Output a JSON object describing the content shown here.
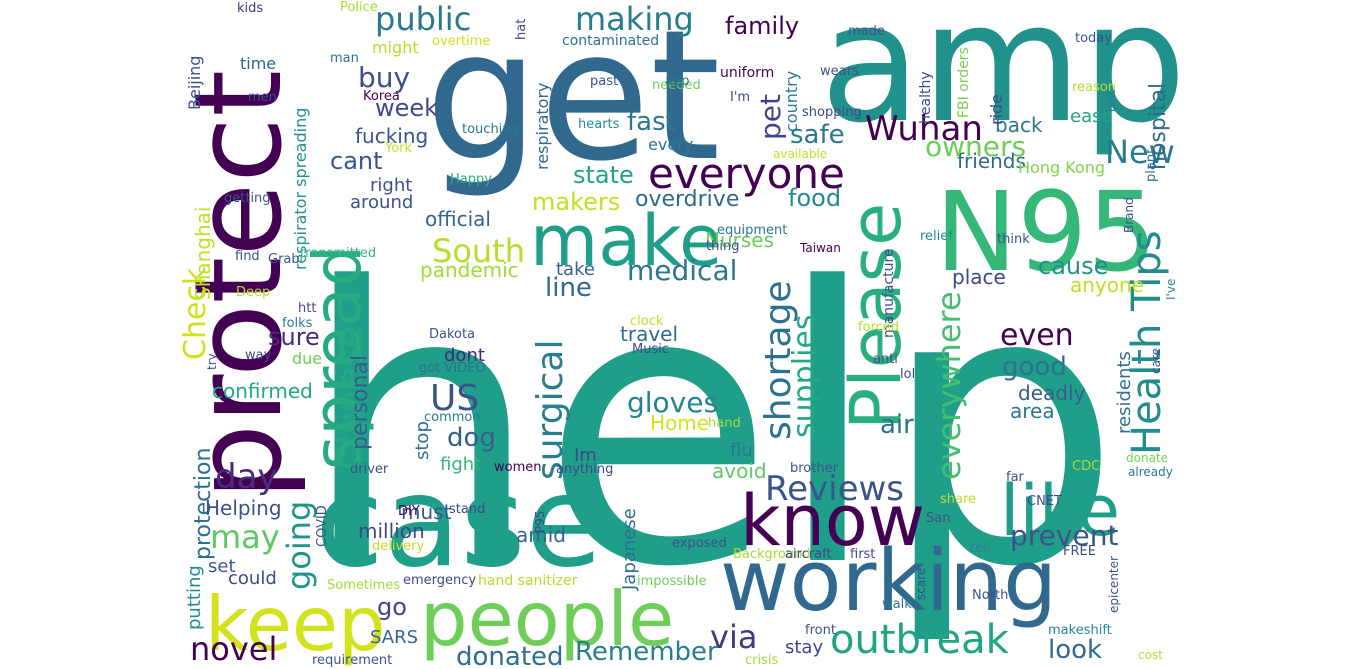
{
  "words": [
    {
      "text": "help",
      "color": "#1f9e89"
    },
    {
      "text": "get",
      "color": "#31688e"
    },
    {
      "text": "amp",
      "color": "#21918c"
    },
    {
      "text": "case",
      "color": "#1f9e89"
    },
    {
      "text": "protect",
      "color": "#440154"
    },
    {
      "text": "working",
      "color": "#31688e"
    },
    {
      "text": "N95",
      "color": "#35b779"
    },
    {
      "text": "keep",
      "color": "#d2e21b"
    },
    {
      "text": "people",
      "color": "#6ece58"
    },
    {
      "text": "spread",
      "color": "#25ab82"
    },
    {
      "text": "Please",
      "color": "#29af7f"
    },
    {
      "text": "know",
      "color": "#440154"
    },
    {
      "text": "make",
      "color": "#1f9e89"
    },
    {
      "text": "like",
      "color": "#1f9e89"
    },
    {
      "text": "everyone",
      "color": "#440154"
    },
    {
      "text": "outbreak",
      "color": "#20a386"
    },
    {
      "text": "Health Tips",
      "color": "#238a8d"
    },
    {
      "text": "Chinese",
      "color": "#22a884"
    },
    {
      "text": "shortage",
      "color": "#2c728e"
    },
    {
      "text": "surgical",
      "color": "#287d8e"
    },
    {
      "text": "supplies",
      "color": "#22a884"
    },
    {
      "text": "Reviews",
      "color": "#39568c"
    },
    {
      "text": "US",
      "color": "#3b528b"
    },
    {
      "text": "day",
      "color": "#472d7b"
    },
    {
      "text": "going",
      "color": "#1f948c"
    },
    {
      "text": "everywhere",
      "color": "#44bf70"
    },
    {
      "text": "Wuhan",
      "color": "#440154"
    },
    {
      "text": "making",
      "color": "#277f8e"
    },
    {
      "text": "public",
      "color": "#2a788e"
    },
    {
      "text": "novel",
      "color": "#440154"
    },
    {
      "text": "may",
      "color": "#5ec962"
    },
    {
      "text": "Check",
      "color": "#d0e11c"
    },
    {
      "text": "via",
      "color": "#443983"
    },
    {
      "text": "prevent",
      "color": "#3b528b"
    },
    {
      "text": "South",
      "color": "#b5de2b"
    },
    {
      "text": "New",
      "color": "#287c8e"
    },
    {
      "text": "gloves",
      "color": "#25848e"
    },
    {
      "text": "medical",
      "color": "#2a788e"
    },
    {
      "text": "owners",
      "color": "#6ece58"
    },
    {
      "text": "Remember",
      "color": "#287d8e"
    },
    {
      "text": "good",
      "color": "#2c728e"
    },
    {
      "text": "even",
      "color": "#440154"
    },
    {
      "text": "donated",
      "color": "#2e6f8e"
    },
    {
      "text": "look",
      "color": "#2f6c8e"
    },
    {
      "text": "cause",
      "color": "#21918c"
    },
    {
      "text": "food",
      "color": "#238a8d"
    },
    {
      "text": "buy",
      "color": "#3b528b"
    },
    {
      "text": "pet",
      "color": "#414487"
    },
    {
      "text": "fast",
      "color": "#2a788e"
    },
    {
      "text": "state",
      "color": "#20a386"
    },
    {
      "text": "dog",
      "color": "#35608d"
    },
    {
      "text": "air",
      "color": "#2d708e"
    },
    {
      "text": "cant",
      "color": "#39568c"
    },
    {
      "text": "line",
      "color": "#306a8e"
    },
    {
      "text": "safe",
      "color": "#2a788e"
    },
    {
      "text": "week",
      "color": "#3e4a89"
    },
    {
      "text": "go",
      "color": "#414487"
    },
    {
      "text": "sure",
      "color": "#472c7a"
    },
    {
      "text": "family",
      "color": "#440154"
    },
    {
      "text": "hospital",
      "color": "#2f6c8e"
    },
    {
      "text": "personal",
      "color": "#365c8d"
    },
    {
      "text": "protection",
      "color": "#2d708e"
    },
    {
      "text": "pandemic",
      "color": "#a2da37"
    },
    {
      "text": "overdrive",
      "color": "#31688e"
    },
    {
      "text": "official",
      "color": "#32658e"
    },
    {
      "text": "makers",
      "color": "#c2df23"
    },
    {
      "text": "fucking",
      "color": "#3a548c"
    },
    {
      "text": "deadly",
      "color": "#35608d"
    },
    {
      "text": "area",
      "color": "#2a788e"
    },
    {
      "text": "Helping",
      "color": "#3b528b"
    },
    {
      "text": "Shanghai",
      "color": "#c0df25"
    },
    {
      "text": "travel",
      "color": "#306a8e"
    },
    {
      "text": "place",
      "color": "#3e4989"
    },
    {
      "text": "anyone",
      "color": "#c2df23"
    },
    {
      "text": "back",
      "color": "#2a788e"
    },
    {
      "text": "Japanese",
      "color": "#2d708e"
    },
    {
      "text": "confirmed",
      "color": "#22a884"
    },
    {
      "text": "Nurses",
      "color": "#6ccd5a"
    },
    {
      "text": "must",
      "color": "#39568c"
    },
    {
      "text": "million",
      "color": "#3e4989"
    },
    {
      "text": "could",
      "color": "#3e4989"
    },
    {
      "text": "set",
      "color": "#365c8d"
    },
    {
      "text": "putting",
      "color": "#238a8d"
    },
    {
      "text": "stay",
      "color": "#404688"
    },
    {
      "text": "fight",
      "color": "#35b779"
    },
    {
      "text": "Im",
      "color": "#3e4989"
    },
    {
      "text": "avoid",
      "color": "#5ec962"
    },
    {
      "text": "flu",
      "color": "#2a788e"
    },
    {
      "text": "Home",
      "color": "#d5e21a"
    },
    {
      "text": "stop",
      "color": "#2c728e"
    },
    {
      "text": "friends",
      "color": "#31688e"
    },
    {
      "text": "amid",
      "color": "#32658e"
    },
    {
      "text": "right",
      "color": "#3b528b"
    },
    {
      "text": "around",
      "color": "#3b528b"
    },
    {
      "text": "take",
      "color": "#35608d"
    },
    {
      "text": "SARS",
      "color": "#32658e"
    },
    {
      "text": "ease",
      "color": "#20a386"
    },
    {
      "text": "residents",
      "color": "#2e6f8e"
    },
    {
      "text": "dont",
      "color": "#482677"
    },
    {
      "text": "Beijing",
      "color": "#3b528b"
    },
    {
      "text": "time",
      "color": "#32658e"
    },
    {
      "text": "respiratory",
      "color": "#31688e"
    },
    {
      "text": "respirator spreading",
      "color": "#21918c"
    },
    {
      "text": "country",
      "color": "#2a788e"
    },
    {
      "text": "due",
      "color": "#6ece58"
    },
    {
      "text": "might",
      "color": "#b5de2b"
    },
    {
      "text": "every",
      "color": "#2a788e"
    },
    {
      "text": "Hong Kong",
      "color": "#84d44b"
    },
    {
      "text": "manufacture",
      "color": "#3b528b"
    },
    {
      "text": "FBI orders",
      "color": "#7ad151"
    },
    {
      "text": "ride",
      "color": "#3e4989"
    },
    {
      "text": "healthy",
      "color": "#3e4989"
    },
    {
      "text": "uniform",
      "color": "#440154"
    },
    {
      "text": "contaminated",
      "color": "#2d708e"
    },
    {
      "text": "overtime",
      "color": "#d2e21b"
    },
    {
      "text": "Police",
      "color": "#a8db34"
    },
    {
      "text": "kids",
      "color": "#453781"
    },
    {
      "text": "hat",
      "color": "#3e4989"
    },
    {
      "text": "made",
      "color": "#3b528b"
    },
    {
      "text": "today",
      "color": "#3b528b"
    },
    {
      "text": "reason",
      "color": "#b5de2b"
    },
    {
      "text": "isnt",
      "color": "#287d8e"
    },
    {
      "text": "wears",
      "color": "#3b528b"
    },
    {
      "text": "shopping",
      "color": "#3e4989"
    },
    {
      "text": "I'm",
      "color": "#3e4989"
    },
    {
      "text": "past",
      "color": "#3b528b"
    },
    {
      "text": "needed",
      "color": "#6ece58"
    },
    {
      "text": "app",
      "color": "#2a788e"
    },
    {
      "text": "man",
      "color": "#2c728e"
    },
    {
      "text": "Korea",
      "color": "#440154"
    },
    {
      "text": "men",
      "color": "#3b528b"
    },
    {
      "text": "touching",
      "color": "#2a788e"
    },
    {
      "text": "hearts",
      "color": "#238a8d"
    },
    {
      "text": "York",
      "color": "#c2df23"
    },
    {
      "text": "Happy",
      "color": "#29af7f"
    },
    {
      "text": "available",
      "color": "#c2df23"
    },
    {
      "text": "plant",
      "color": "#2d708e"
    },
    {
      "text": "getting",
      "color": "#39568c"
    },
    {
      "text": "Brand",
      "color": "#3b528b"
    },
    {
      "text": "equipment",
      "color": "#2a788e"
    },
    {
      "text": "thing",
      "color": "#3e4989"
    },
    {
      "text": "Taiwan",
      "color": "#440154"
    },
    {
      "text": "think",
      "color": "#3b528b"
    },
    {
      "text": "relief",
      "color": "#238a8d"
    },
    {
      "text": "transmitted",
      "color": "#35b779"
    },
    {
      "text": "find",
      "color": "#3b528b"
    },
    {
      "text": "Grab",
      "color": "#3b528b"
    },
    {
      "text": "Deep",
      "color": "#b5de2b"
    },
    {
      "text": "htt",
      "color": "#3e4989"
    },
    {
      "text": "folks",
      "color": "#2a788e"
    },
    {
      "text": "I've",
      "color": "#238a8d"
    },
    {
      "text": "forced",
      "color": "#b5de2b"
    },
    {
      "text": "clock",
      "color": "#c2df23"
    },
    {
      "text": "Dakota",
      "color": "#3b528b"
    },
    {
      "text": "Music",
      "color": "#3e4989"
    },
    {
      "text": "way",
      "color": "#3e4989"
    },
    {
      "text": "try",
      "color": "#3e4989"
    },
    {
      "text": "got VIDEO",
      "color": "#2c728e"
    },
    {
      "text": "anti",
      "color": "#3b528b"
    },
    {
      "text": "lol",
      "color": "#3e4989"
    },
    {
      "text": "care",
      "color": "#3e4989"
    },
    {
      "text": "common",
      "color": "#287d8e"
    },
    {
      "text": "hand",
      "color": "#a8db34"
    },
    {
      "text": "women",
      "color": "#440154"
    },
    {
      "text": "driver",
      "color": "#3b528b"
    },
    {
      "text": "anything",
      "color": "#3e4989"
    },
    {
      "text": "brother",
      "color": "#3b528b"
    },
    {
      "text": "donate",
      "color": "#7ad151"
    },
    {
      "text": "CDC",
      "color": "#a8db34"
    },
    {
      "text": "already",
      "color": "#2a788e"
    },
    {
      "text": "far",
      "color": "#3b528b"
    },
    {
      "text": "share",
      "color": "#c2df23"
    },
    {
      "text": "CNET",
      "color": "#3e4989"
    },
    {
      "text": "San",
      "color": "#3b528b"
    },
    {
      "text": "stand",
      "color": "#3e4989"
    },
    {
      "text": "P95",
      "color": "#3e4989"
    },
    {
      "text": "DIY",
      "color": "#440154"
    },
    {
      "text": "COVID",
      "color": "#3b528b"
    },
    {
      "text": "delivery",
      "color": "#c2df23"
    },
    {
      "text": "exposed",
      "color": "#3b528b"
    },
    {
      "text": "Background",
      "color": "#a8db34"
    },
    {
      "text": "aircraft",
      "color": "#3e4989"
    },
    {
      "text": "first",
      "color": "#3e4989"
    },
    {
      "text": "tell",
      "color": "#238a8d"
    },
    {
      "text": "FREE",
      "color": "#3b528b"
    },
    {
      "text": "Sometimes",
      "color": "#a8db34"
    },
    {
      "text": "emergency",
      "color": "#3e4989"
    },
    {
      "text": "hand sanitizer",
      "color": "#b5de2b"
    },
    {
      "text": "impossible",
      "color": "#6ece58"
    },
    {
      "text": "walk",
      "color": "#2a788e"
    },
    {
      "text": "scare",
      "color": "#3e4989"
    },
    {
      "text": "North",
      "color": "#3b528b"
    },
    {
      "text": "epicenter",
      "color": "#3b528b"
    },
    {
      "text": "front",
      "color": "#3b528b"
    },
    {
      "text": "makeshift",
      "color": "#238a8d"
    },
    {
      "text": "requirement",
      "color": "#3b528b"
    },
    {
      "text": "crisis",
      "color": "#a8db34"
    },
    {
      "text": "cost",
      "color": "#b5de2b"
    }
  ]
}
